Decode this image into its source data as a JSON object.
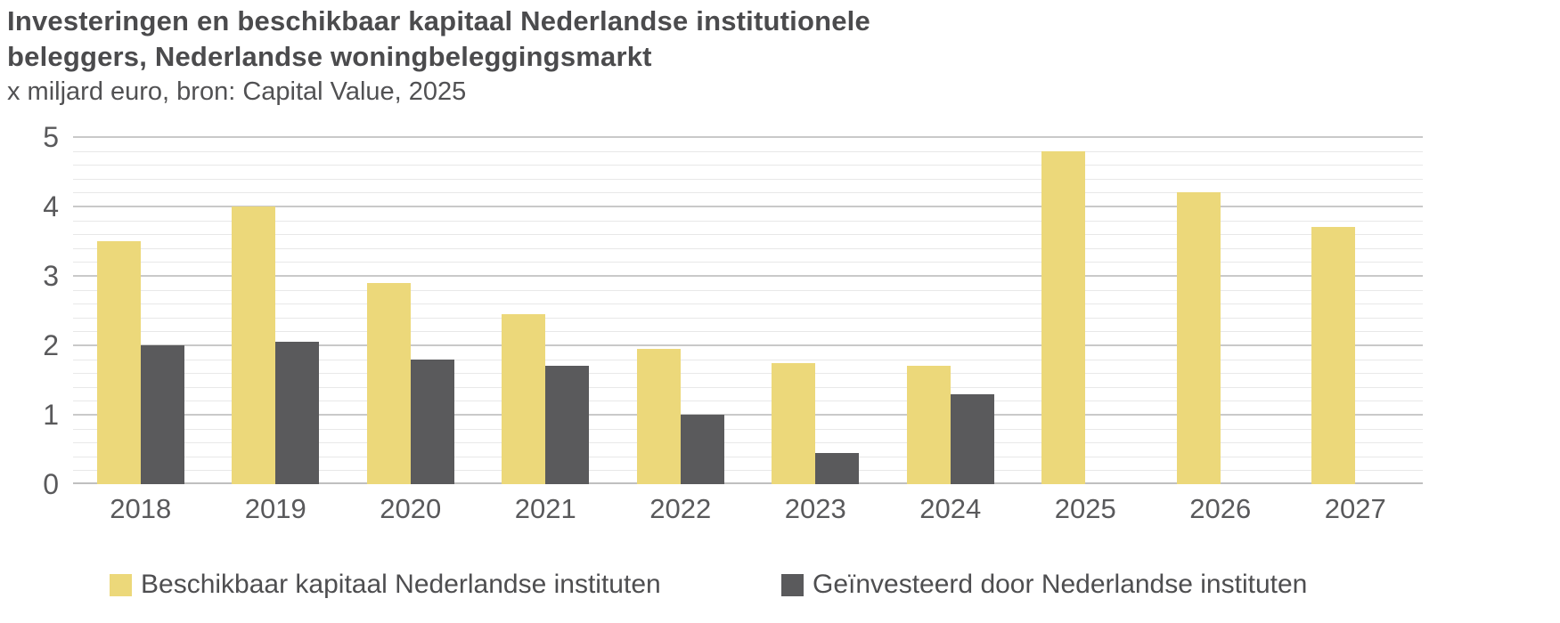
{
  "header": {
    "title_line1": "Investeringen en beschikbaar kapitaal Nederlandse institutionele",
    "title_line2": "beleggers, Nederlandse woningbeleggingsmarkt",
    "subtitle": "x miljard euro, bron: Capital Value, 2025"
  },
  "chart_data": {
    "type": "bar",
    "title": "Investeringen en beschikbaar kapitaal Nederlandse institutionele beleggers, Nederlandse woningbeleggingsmarkt",
    "subtitle": "x miljard euro, bron: Capital Value, 2025",
    "categories": [
      "2018",
      "2019",
      "2020",
      "2021",
      "2022",
      "2023",
      "2024",
      "2025",
      "2026",
      "2027"
    ],
    "series": [
      {
        "name": "Beschikbaar kapitaal Nederlandse instituten",
        "color": "#ecd87a",
        "values": [
          3.5,
          4.0,
          2.9,
          2.45,
          1.95,
          1.75,
          1.7,
          4.8,
          4.2,
          3.7
        ]
      },
      {
        "name": "Geïnvesteerd door Nederlandse instituten",
        "color": "#5a5a5c",
        "values": [
          2.0,
          2.05,
          1.8,
          1.7,
          1.0,
          0.45,
          1.3,
          null,
          null,
          null
        ]
      }
    ],
    "xlabel": "",
    "ylabel": "",
    "ylim": [
      0,
      5
    ],
    "y_ticks": [
      0,
      1,
      2,
      3,
      4,
      5
    ],
    "y_minor_step": 0.2,
    "grid": true,
    "legend_position": "bottom"
  },
  "colors": {
    "available_capital": "#ecd87a",
    "invested": "#5a5a5c",
    "grid_major": "#c9c9c9",
    "grid_minor": "#e8e8e8",
    "axis_baseline": "#bfbfbf",
    "title_text": "#4b4b4d",
    "axis_text": "#59595b"
  }
}
